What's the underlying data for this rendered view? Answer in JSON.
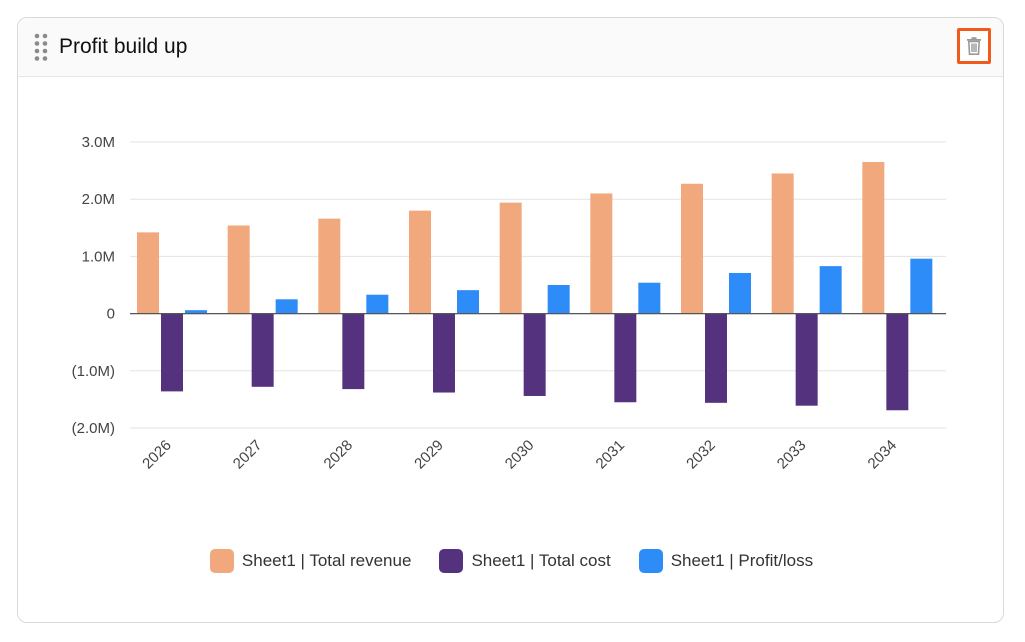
{
  "widget": {
    "title": "Profit build up",
    "drag_icon": "drag-handle-icon",
    "delete_icon": "trash-icon",
    "delete_highlight_color": "#f05a1a"
  },
  "chart_data": {
    "type": "bar",
    "categories": [
      "2026",
      "2027",
      "2028",
      "2029",
      "2030",
      "2031",
      "2032",
      "2033",
      "2034"
    ],
    "series": [
      {
        "name": "Sheet1 | Total revenue",
        "color": "#f0a87c",
        "values": [
          1420000,
          1540000,
          1660000,
          1800000,
          1940000,
          2100000,
          2270000,
          2450000,
          2650000
        ]
      },
      {
        "name": "Sheet1 | Total cost",
        "color": "#54327e",
        "values": [
          -1360000,
          -1280000,
          -1320000,
          -1380000,
          -1440000,
          -1550000,
          -1560000,
          -1610000,
          -1690000
        ]
      },
      {
        "name": "Sheet1 | Profit/loss",
        "color": "#2d8cf8",
        "values": [
          60000,
          250000,
          330000,
          410000,
          500000,
          540000,
          710000,
          830000,
          960000
        ]
      }
    ],
    "y_ticks": [
      {
        "value": 3000000,
        "label": "3.0M"
      },
      {
        "value": 2000000,
        "label": "2.0M"
      },
      {
        "value": 1000000,
        "label": "1.0M"
      },
      {
        "value": 0,
        "label": "0"
      },
      {
        "value": -1000000,
        "label": "(1.0M)"
      },
      {
        "value": -2000000,
        "label": "(2.0M)"
      }
    ],
    "ylim": [
      -2000000,
      3000000
    ],
    "grid": true,
    "legend_position": "bottom-center"
  }
}
